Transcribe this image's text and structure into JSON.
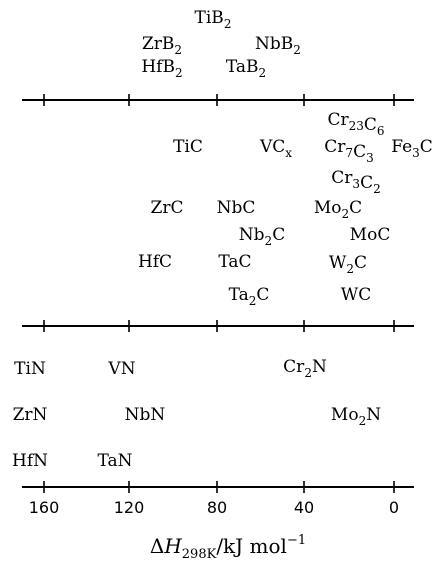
{
  "diagram": {
    "axis_title": {
      "prefix": "ΔH",
      "subscript": "298K",
      "unit": "/kJ mol",
      "exponent": "−1"
    },
    "ticks": [
      "160",
      "120",
      "80",
      "40",
      "0"
    ],
    "rows": [
      {
        "id": "borides",
        "compounds": [
          {
            "base": "TiB",
            "sub": "2"
          },
          {
            "base": "ZrB",
            "sub": "2"
          },
          {
            "base": "NbB",
            "sub": "2"
          },
          {
            "base": "HfB",
            "sub": "2"
          },
          {
            "base": "TaB",
            "sub": "2"
          }
        ]
      },
      {
        "id": "carbides",
        "compounds": [
          {
            "parts": [
              [
                "Cr",
                "23"
              ],
              [
                "C",
                "6"
              ]
            ]
          },
          {
            "base": "TiC"
          },
          {
            "base": "VC",
            "sub": "x"
          },
          {
            "parts": [
              [
                "Cr",
                "7"
              ],
              [
                "C",
                "3"
              ]
            ]
          },
          {
            "base": "Fe",
            "sub": "3",
            "after": "C"
          },
          {
            "parts": [
              [
                "Cr",
                "3"
              ],
              [
                "C",
                "2"
              ]
            ]
          },
          {
            "base": "ZrC"
          },
          {
            "base": "NbC"
          },
          {
            "base": "Mo",
            "sub": "2",
            "after": "C"
          },
          {
            "base": "Nb",
            "sub": "2",
            "after": "C"
          },
          {
            "base": "MoC"
          },
          {
            "base": "HfC"
          },
          {
            "base": "TaC"
          },
          {
            "base": "W",
            "sub": "2",
            "after": "C"
          },
          {
            "base": "Ta",
            "sub": "2",
            "after": "C"
          },
          {
            "base": "WC"
          }
        ]
      },
      {
        "id": "nitrides",
        "compounds": [
          {
            "base": "TiN"
          },
          {
            "base": "VN"
          },
          {
            "base": "Cr",
            "sub": "2",
            "after": "N"
          },
          {
            "base": "ZrN"
          },
          {
            "base": "NbN"
          },
          {
            "base": "Mo",
            "sub": "2",
            "after": "N"
          },
          {
            "base": "HfN"
          },
          {
            "base": "TaN"
          }
        ]
      }
    ]
  }
}
